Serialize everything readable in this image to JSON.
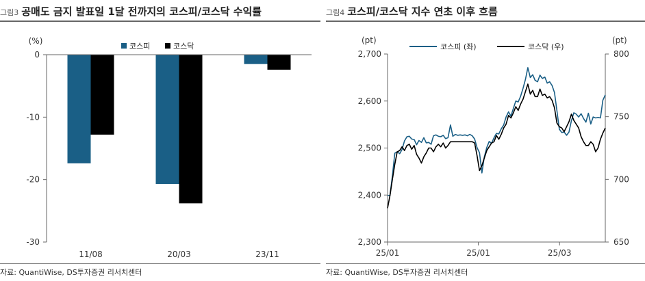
{
  "left": {
    "fig_label": "그림3",
    "title": "공매도 금지 발표일 1달 전까지의 코스피/코스닥 수익률",
    "source": "자료: QuantiWise, DS투자증권 리서치센터"
  },
  "right": {
    "fig_label": "그림4",
    "title": "코스피/코스닥 지수 연초 이후 흐름",
    "source": "자료: QuantiWise, DS투자증권 리서치센터"
  },
  "colors": {
    "kospi": "#1a5f86",
    "kosdaq": "#000000",
    "axis": "#666666"
  },
  "chart_data": [
    {
      "type": "bar",
      "title": "공매도 금지 발표일 1달 전까지의 코스피/코스닥 수익률",
      "ylabel": "(%)",
      "categories": [
        "11/08",
        "20/03",
        "23/11"
      ],
      "series": [
        {
          "name": "코스피",
          "values": [
            -17.4,
            -20.7,
            -1.5
          ]
        },
        {
          "name": "코스닥",
          "values": [
            -12.8,
            -23.8,
            -2.4
          ]
        }
      ],
      "ylim": [
        -30,
        0
      ],
      "yticks": [
        0,
        -10,
        -20,
        -30
      ],
      "legend": "top-center",
      "grid": false
    },
    {
      "type": "line",
      "title": "코스피/코스닥 지수 연초 이후 흐름",
      "ylabel_left": "(pt)",
      "ylabel_right": "(pt)",
      "x_ticks": [
        "25/01",
        "25/01",
        "25/03"
      ],
      "ylim_left": [
        2300,
        2700
      ],
      "yticks_left": [
        2300,
        2400,
        2500,
        2600,
        2700
      ],
      "ylim_right": [
        650,
        800
      ],
      "yticks_right": [
        650,
        700,
        750,
        800
      ],
      "legend": "top-center",
      "grid": false,
      "series": [
        {
          "name": "코스피 (좌)",
          "axis": "left",
          "values": [
            2399,
            2399,
            2441,
            2489,
            2492,
            2488,
            2497,
            2515,
            2524,
            2525,
            2519,
            2518,
            2507,
            2516,
            2512,
            2522,
            2511,
            2512,
            2508,
            2526,
            2528,
            2525,
            2524,
            2527,
            2520,
            2522,
            2549,
            2525,
            2529,
            2527,
            2528,
            2527,
            2528,
            2526,
            2529,
            2526,
            2519,
            2501,
            2490,
            2447,
            2481,
            2501,
            2514,
            2510,
            2522,
            2531,
            2530,
            2541,
            2549,
            2566,
            2577,
            2568,
            2584,
            2600,
            2598,
            2610,
            2627,
            2646,
            2671,
            2650,
            2656,
            2644,
            2641,
            2655,
            2648,
            2651,
            2638,
            2641,
            2633,
            2618,
            2580,
            2540,
            2533,
            2534,
            2527,
            2534,
            2558,
            2575,
            2572,
            2566,
            2573,
            2563,
            2555,
            2574,
            2551,
            2566,
            2564,
            2565,
            2564,
            2602,
            2613
          ]
        },
        {
          "name": "코스닥 (우)",
          "axis": "right",
          "values": [
            677,
            687,
            700,
            712,
            722,
            723,
            726,
            723,
            727,
            728,
            724,
            727,
            720,
            717,
            713,
            718,
            721,
            725,
            725,
            722,
            726,
            728,
            726,
            729,
            725,
            727,
            730,
            730,
            730,
            730,
            730,
            730,
            730,
            730,
            730,
            730,
            729,
            719,
            707,
            711,
            717,
            723,
            726,
            729,
            730,
            735,
            732,
            736,
            741,
            744,
            751,
            749,
            753,
            758,
            755,
            760,
            764,
            770,
            776,
            768,
            771,
            766,
            766,
            772,
            767,
            768,
            765,
            766,
            763,
            757,
            745,
            742,
            741,
            738,
            742,
            746,
            752,
            747,
            744,
            741,
            734,
            730,
            727,
            727,
            730,
            728,
            722,
            725,
            732,
            737,
            741
          ]
        }
      ]
    }
  ]
}
